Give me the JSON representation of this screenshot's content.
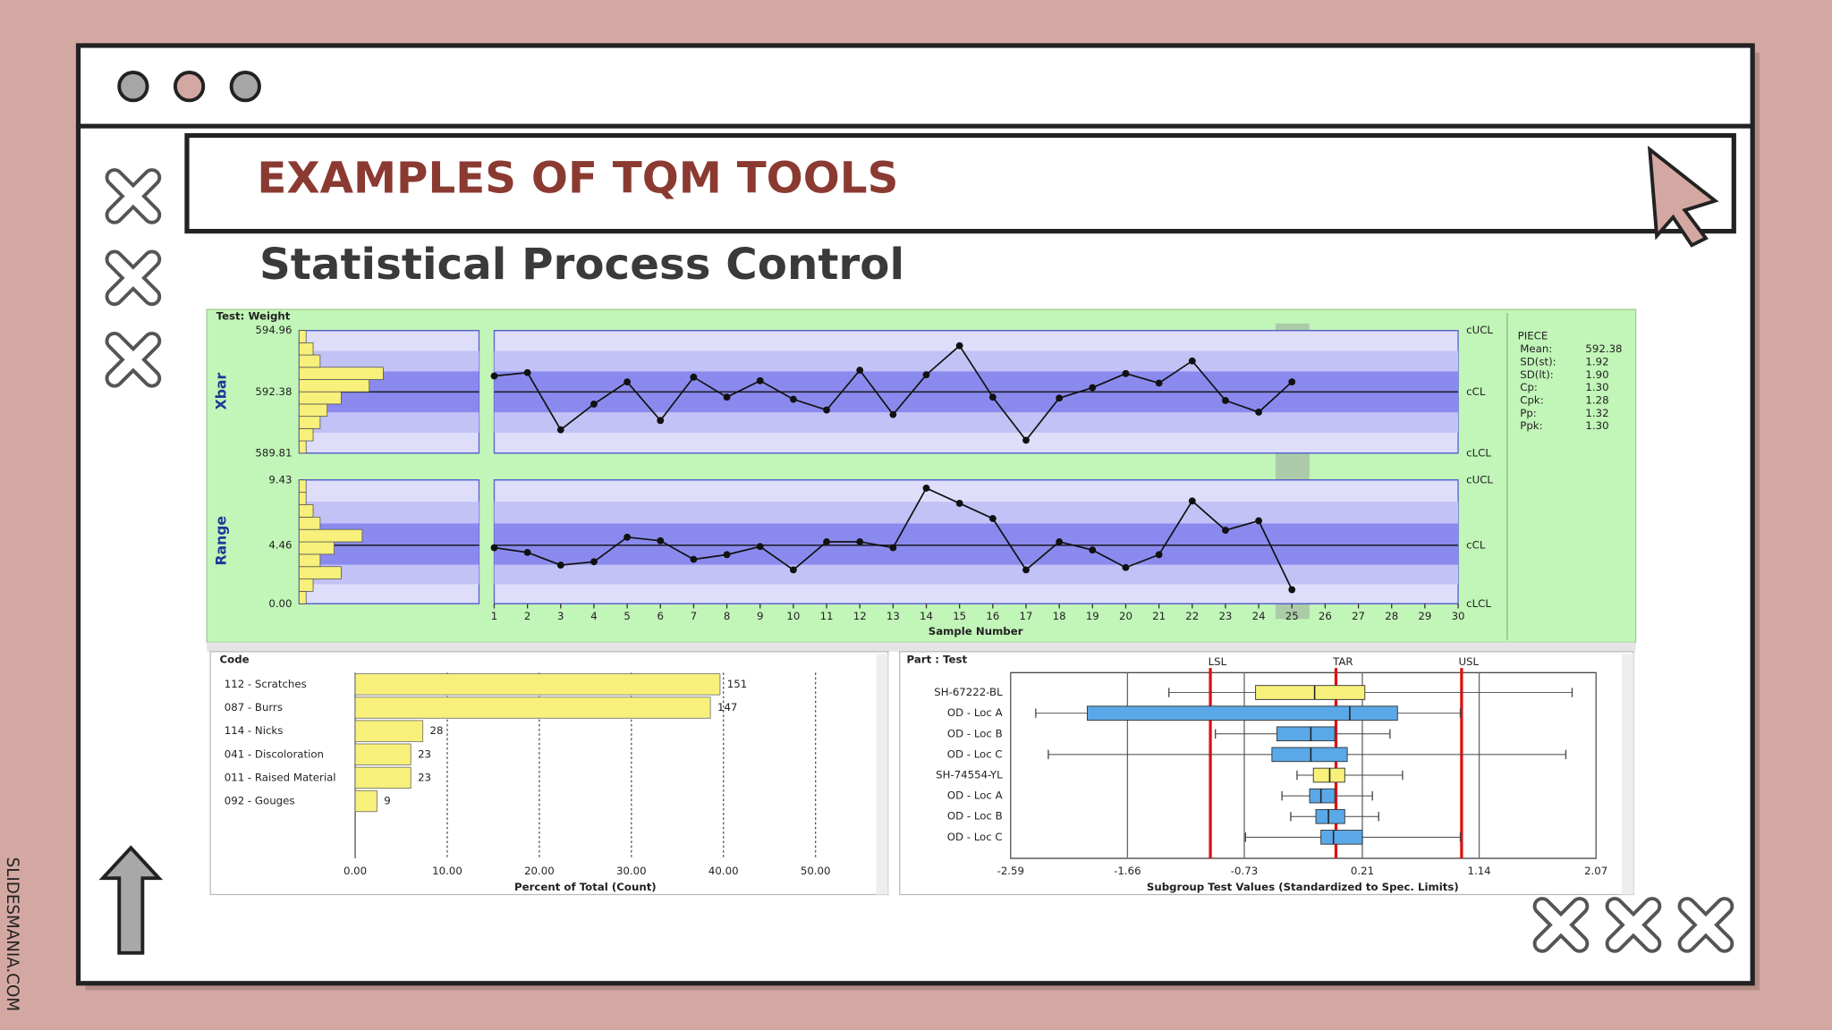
{
  "slide": {
    "title": "EXAMPLES OF TQM TOOLS",
    "subtitle": "Statistical Process Control",
    "watermark": "SLIDESMANIA.COM"
  },
  "spc": {
    "test_label": "Test: Weight",
    "x_label": "Sample Number",
    "xlim": [
      1,
      30
    ],
    "xticks": [
      1,
      2,
      3,
      4,
      5,
      6,
      7,
      8,
      9,
      10,
      11,
      12,
      13,
      14,
      15,
      16,
      17,
      18,
      19,
      20,
      21,
      22,
      23,
      24,
      25,
      26,
      27,
      28,
      29,
      30
    ],
    "x": [
      1,
      2,
      3,
      4,
      5,
      6,
      7,
      8,
      9,
      10,
      11,
      12,
      13,
      14,
      15,
      16,
      17,
      18,
      19,
      20,
      21,
      22,
      23,
      24,
      25
    ],
    "highlight_sample": 25,
    "xbar": {
      "label": "Xbar",
      "ylim": [
        589.81,
        594.96
      ],
      "yticks": [
        589.81,
        592.38,
        594.96
      ],
      "limit_labels": [
        "cLCL",
        "cCL",
        "cUCL"
      ],
      "values": [
        593.05,
        593.19,
        590.79,
        591.87,
        592.8,
        591.18,
        593.0,
        592.16,
        592.85,
        592.07,
        591.62,
        593.29,
        591.43,
        593.1,
        594.32,
        592.16,
        590.35,
        592.12,
        592.56,
        593.15,
        592.75,
        593.68,
        592.02,
        591.53,
        592.8
      ],
      "histogram": [
        1,
        2,
        3,
        4,
        6,
        10,
        12,
        3,
        2,
        1
      ]
    },
    "range": {
      "label": "Range",
      "ylim": [
        0,
        9.43
      ],
      "yticks": [
        {
          "value": 0,
          "label": "0.00"
        },
        4.46,
        9.43
      ],
      "limit_labels": [
        "cLCL",
        "cCL",
        "cUCL"
      ],
      "values": [
        4.27,
        3.91,
        2.94,
        3.2,
        5.07,
        4.8,
        3.38,
        3.74,
        4.36,
        2.58,
        4.72,
        4.72,
        4.27,
        8.81,
        7.65,
        6.49,
        2.58,
        4.72,
        4.09,
        2.76,
        3.74,
        7.83,
        5.6,
        6.32,
        1.07
      ],
      "histogram": [
        1,
        2,
        6,
        3,
        5,
        9,
        3,
        2,
        1,
        1
      ]
    },
    "stats": {
      "title": "PIECE",
      "rows": [
        [
          "Mean:",
          "592.38"
        ],
        [
          "SD(st):",
          "1.92"
        ],
        [
          "SD(lt):",
          "1.90"
        ],
        [
          "Cp:",
          "1.30"
        ],
        [
          "Cpk:",
          "1.28"
        ],
        [
          "Pp:",
          "1.32"
        ],
        [
          "Ppk:",
          "1.30"
        ]
      ]
    }
  },
  "pareto": {
    "header": "Code",
    "x_label": "Percent of Total (Count)",
    "xlim": [
      0,
      50
    ],
    "xticks": [
      {
        "value": 0,
        "label": "0.00"
      },
      {
        "value": 10,
        "label": "10.00"
      },
      {
        "value": 20,
        "label": "20.00"
      },
      {
        "value": 30,
        "label": "30.00"
      },
      {
        "value": 40,
        "label": "40.00"
      },
      {
        "value": 50,
        "label": "50.00"
      }
    ],
    "categories": [
      "112 - Scratches",
      "087 - Burrs",
      "114 - Nicks",
      "041 - Discoloration",
      "011 - Raised Material",
      "092 - Gouges"
    ],
    "values": [
      39.63,
      38.58,
      7.35,
      6.04,
      6.04,
      2.36
    ],
    "counts": [
      151,
      147,
      28,
      23,
      23,
      9
    ],
    "color": "#f7f07a"
  },
  "boxplot": {
    "header": "Part : Test",
    "x_label": "Subgroup Test Values (Standardized to Spec. Limits)",
    "xlim": [
      -2.59,
      2.07
    ],
    "xticks": [
      -2.59,
      -1.66,
      -0.73,
      0.21,
      1.14,
      2.07
    ],
    "spec_lines": [
      {
        "label": "LSL",
        "value": -1
      },
      {
        "label": "TAR",
        "value": 0
      },
      {
        "label": "USL",
        "value": 1
      }
    ],
    "categories": [
      "SH-67222-BL",
      "OD - Loc A",
      "OD - Loc B",
      "OD - Loc C",
      "SH-74554-YL",
      "OD - Loc A",
      "OD - Loc B",
      "OD - Loc C"
    ],
    "colors": [
      "#f7f07a",
      "#5aa8e8",
      "#5aa8e8",
      "#5aa8e8",
      "#f7f07a",
      "#5aa8e8",
      "#5aa8e8",
      "#5aa8e8"
    ],
    "low": [
      -1.33,
      -2.39,
      -0.96,
      -2.29,
      -0.31,
      -0.43,
      -0.36,
      -0.72
    ],
    "q1": [
      -0.64,
      -1.98,
      -0.47,
      -0.51,
      -0.18,
      -0.21,
      -0.16,
      -0.12
    ],
    "median": [
      -0.17,
      0.11,
      -0.2,
      -0.2,
      -0.05,
      -0.12,
      -0.06,
      -0.02
    ],
    "q3": [
      0.23,
      0.49,
      -0.01,
      0.09,
      0.07,
      -0.01,
      0.07,
      0.21
    ],
    "high": [
      1.88,
      0.99,
      0.43,
      1.83,
      0.53,
      0.29,
      0.34,
      0.99
    ]
  }
}
